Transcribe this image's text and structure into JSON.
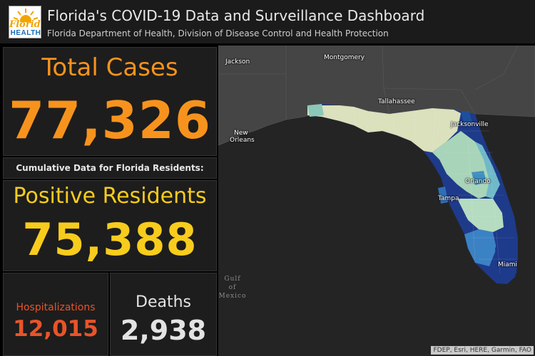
{
  "header": {
    "title": "Florida's COVID-19 Data and Surveillance Dashboard",
    "subtitle": "Florida Department of Health, Division of Disease Control and Health Protection",
    "logo_line1": "Florida",
    "logo_line2": "HEALTH"
  },
  "total": {
    "label": "Total Cases",
    "value": "77,326"
  },
  "note": "Cumulative Data for Florida Residents:",
  "positive": {
    "label": "Positive Residents",
    "value": "75,388"
  },
  "hospitalizations": {
    "label": "Hospitalizations",
    "value": "12,015"
  },
  "deaths": {
    "label": "Deaths",
    "value": "2,938"
  },
  "map": {
    "cities": {
      "jackson": "Jackson",
      "montgomery": "Montgomery",
      "new_orleans_1": "New",
      "new_orleans_2": "Orleans",
      "tallahassee": "Tallahassee",
      "jacksonville": "Jacksonville",
      "orlando": "Orlando",
      "tampa": "Tampa",
      "miami": "Miami"
    },
    "gulf_label_1": "Gulf",
    "gulf_label_2": "of",
    "gulf_label_3": "Mexico",
    "attribution": "FDEP, Esri, HERE, Garmin, FAO"
  },
  "colors": {
    "total": "#f7931d",
    "positive": "#f7cc1d",
    "hospitalizations": "#e8542a",
    "deaths": "#e3e3e3"
  }
}
